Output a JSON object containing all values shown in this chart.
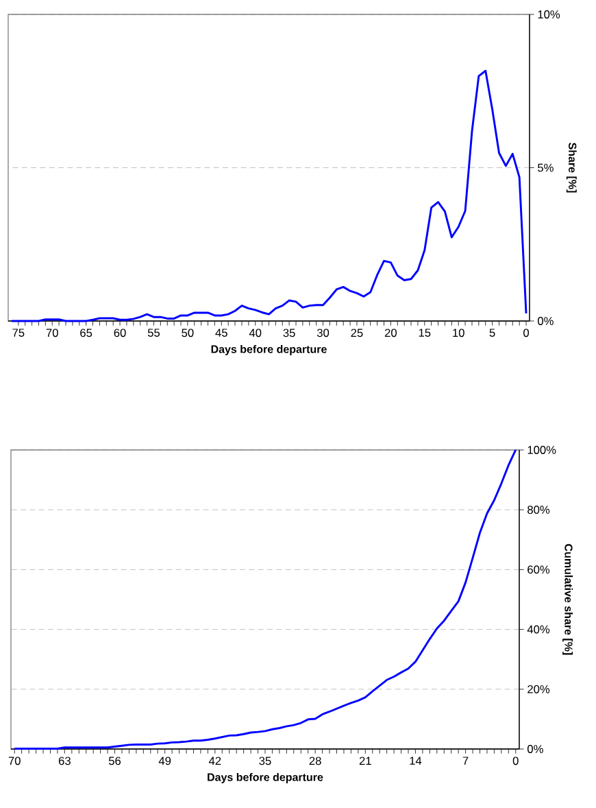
{
  "chart_data": [
    {
      "type": "line",
      "xlabel": "Days before departure",
      "ylabel": "Share [%]",
      "color": "#0000ff",
      "grid": "y",
      "x": [
        76,
        75,
        74,
        73,
        72,
        71,
        70,
        69,
        68,
        67,
        66,
        65,
        64,
        63,
        62,
        61,
        60,
        59,
        58,
        57,
        56,
        55,
        54,
        53,
        52,
        51,
        50,
        49,
        48,
        47,
        46,
        45,
        44,
        43,
        42,
        41,
        40,
        39,
        38,
        37,
        36,
        35,
        34,
        33,
        32,
        31,
        30,
        29,
        28,
        27,
        26,
        25,
        24,
        23,
        22,
        21,
        20,
        19,
        18,
        17,
        16,
        15,
        14,
        13,
        12,
        11,
        10,
        9,
        8,
        7,
        6,
        5,
        4,
        3,
        2,
        1,
        0
      ],
      "values": [
        0,
        0,
        0,
        0,
        0,
        0.05,
        0.05,
        0.05,
        0,
        0,
        0,
        0,
        0.04,
        0.09,
        0.09,
        0.09,
        0.04,
        0.04,
        0.07,
        0.13,
        0.22,
        0.13,
        0.13,
        0.08,
        0.08,
        0.18,
        0.18,
        0.27,
        0.27,
        0.27,
        0.18,
        0.18,
        0.22,
        0.33,
        0.5,
        0.41,
        0.36,
        0.28,
        0.22,
        0.41,
        0.5,
        0.67,
        0.63,
        0.44,
        0.5,
        0.52,
        0.52,
        0.76,
        1.03,
        1.11,
        0.98,
        0.91,
        0.8,
        0.94,
        1.5,
        1.96,
        1.91,
        1.48,
        1.33,
        1.37,
        1.65,
        2.31,
        3.7,
        3.88,
        3.57,
        2.73,
        3.07,
        3.59,
        6.19,
        7.99,
        8.16,
        6.9,
        5.48,
        5.06,
        5.45,
        4.69,
        0.25
      ],
      "xlim": [
        76.5,
        -0.5
      ],
      "xticks": [
        75,
        70,
        65,
        60,
        55,
        50,
        45,
        40,
        35,
        30,
        25,
        20,
        15,
        10,
        5,
        0
      ],
      "ylim": [
        0,
        10
      ],
      "yticks": [
        {
          "value": 0,
          "label": "0%"
        },
        {
          "value": 5,
          "label": "5%"
        },
        {
          "value": 10,
          "label": "10%"
        }
      ]
    },
    {
      "type": "line",
      "xlabel": "Days before departure",
      "ylabel": "Cumulative share [%]",
      "color": "#0000ff",
      "grid": "y",
      "x": [
        70,
        69,
        68,
        67,
        66,
        65,
        64,
        63,
        62,
        61,
        60,
        59,
        58,
        57,
        56,
        55,
        54,
        53,
        52,
        51,
        50,
        49,
        48,
        47,
        46,
        45,
        44,
        43,
        42,
        41,
        40,
        39,
        38,
        37,
        36,
        35,
        34,
        33,
        32,
        31,
        30,
        29,
        28,
        27,
        26,
        25,
        24,
        23,
        22,
        21,
        20,
        19,
        18,
        17,
        16,
        15,
        14,
        13,
        12,
        11,
        10,
        9,
        8,
        7,
        6,
        5,
        4,
        3,
        2,
        1,
        0
      ],
      "values": [
        0.1,
        0.1,
        0.1,
        0.1,
        0.1,
        0.1,
        0.1,
        0.5,
        0.5,
        0.5,
        0.5,
        0.5,
        0.5,
        0.5,
        0.8,
        1.1,
        1.4,
        1.5,
        1.5,
        1.5,
        1.8,
        1.9,
        2.2,
        2.3,
        2.5,
        2.8,
        2.8,
        3.1,
        3.5,
        4.0,
        4.5,
        4.6,
        5.0,
        5.5,
        5.7,
        6.0,
        6.6,
        7.0,
        7.6,
        8.0,
        8.7,
        9.9,
        10.1,
        11.6,
        12.5,
        13.5,
        14.5,
        15.4,
        16.2,
        17.3,
        19.3,
        21.2,
        23.1,
        24.2,
        25.6,
        26.9,
        29.2,
        33.0,
        36.8,
        40.3,
        42.9,
        46.2,
        49.4,
        55.7,
        63.9,
        72.3,
        78.8,
        83.2,
        88.8,
        94.9,
        100
      ],
      "xlim": [
        70.5,
        -0.5
      ],
      "xticks": [
        70,
        63,
        56,
        49,
        42,
        35,
        28,
        21,
        14,
        7,
        0
      ],
      "ylim": [
        0,
        100
      ],
      "yticks": [
        {
          "value": 0,
          "label": "0%"
        },
        {
          "value": 20,
          "label": "20%"
        },
        {
          "value": 40,
          "label": "40%"
        },
        {
          "value": 60,
          "label": "60%"
        },
        {
          "value": 80,
          "label": "80%"
        },
        {
          "value": 100,
          "label": "100%"
        }
      ]
    }
  ]
}
